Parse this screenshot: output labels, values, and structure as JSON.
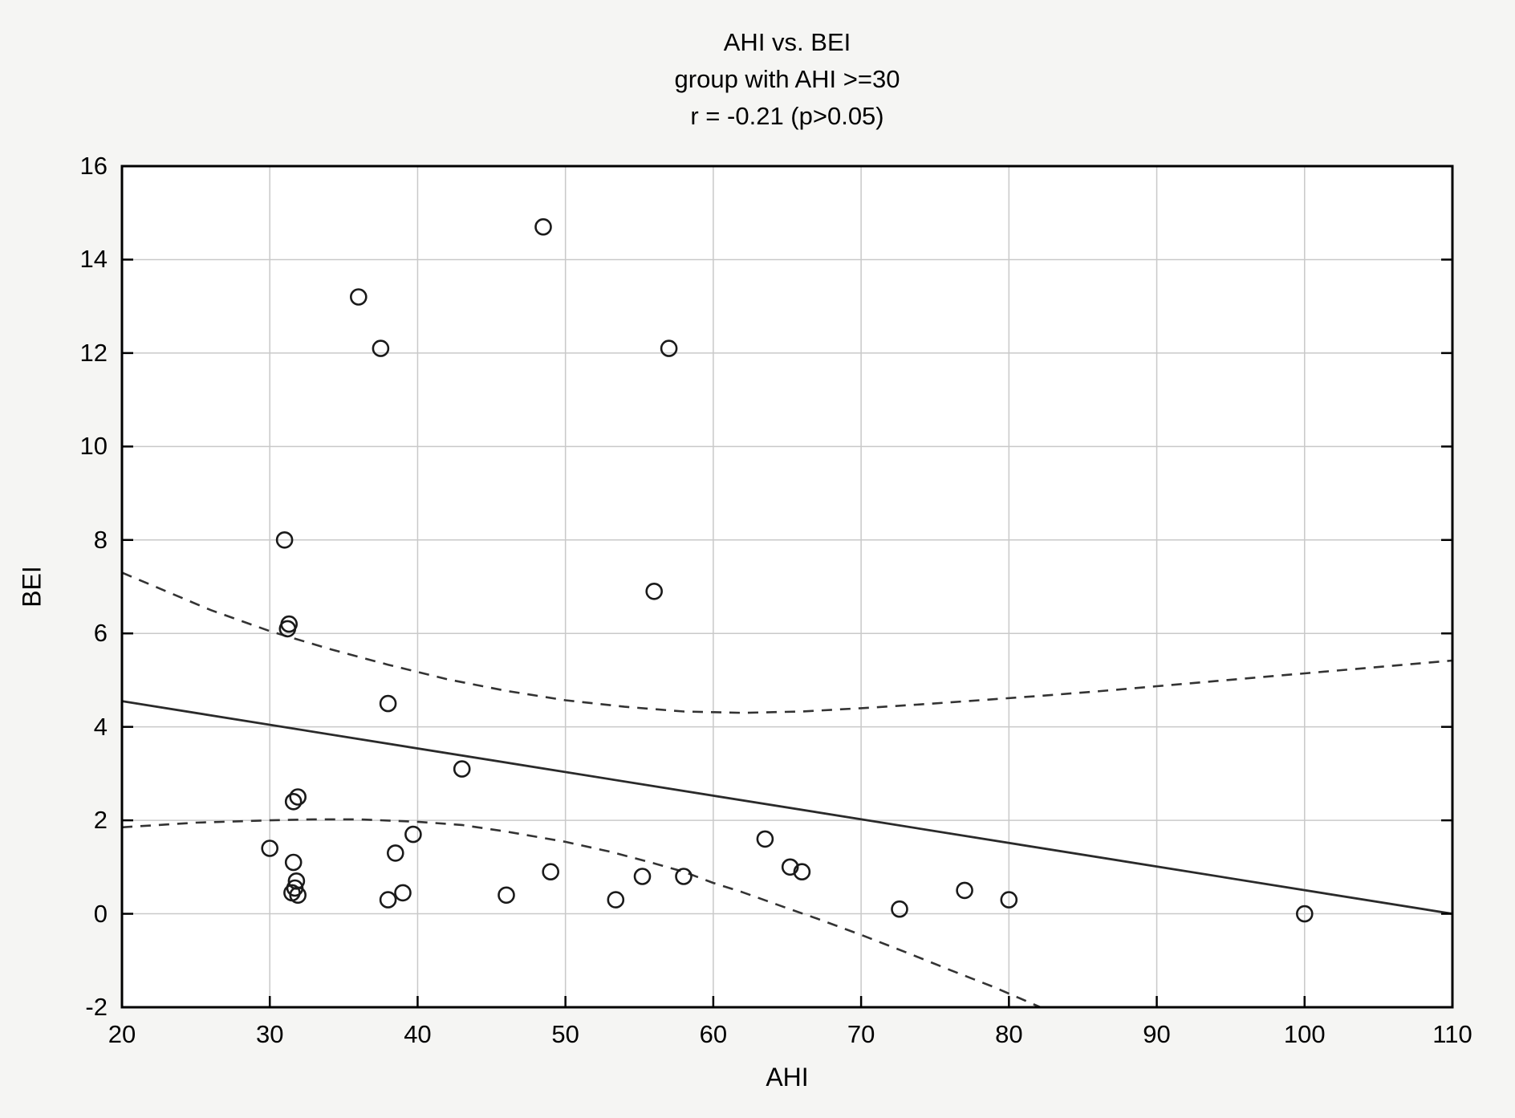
{
  "figure": {
    "background_color": "#f5f5f3",
    "plot_background_color": "#ffffff"
  },
  "chart_data": {
    "type": "scatter",
    "title": "AHI vs. BEI",
    "subtitle": "group with AHI >=30",
    "annotation": "r = -0.21 (p>0.05)",
    "xlabel": "AHI",
    "ylabel": "BEI",
    "xlim": [
      20,
      110
    ],
    "ylim": [
      -2,
      16
    ],
    "x_ticks": [
      20,
      30,
      40,
      50,
      60,
      70,
      80,
      90,
      100,
      110
    ],
    "y_ticks": [
      -2,
      0,
      2,
      4,
      6,
      8,
      10,
      12,
      14,
      16
    ],
    "grid": true,
    "legend": "none",
    "marker": "open-circle",
    "points": [
      [
        48.5,
        14.7
      ],
      [
        36,
        13.2
      ],
      [
        37.5,
        12.1
      ],
      [
        57,
        12.1
      ],
      [
        31,
        8.0
      ],
      [
        56,
        6.9
      ],
      [
        31.3,
        6.2
      ],
      [
        31.2,
        6.1
      ],
      [
        38,
        4.5
      ],
      [
        43,
        3.1
      ],
      [
        31.9,
        2.5
      ],
      [
        31.6,
        2.4
      ],
      [
        39.7,
        1.7
      ],
      [
        63.5,
        1.6
      ],
      [
        30,
        1.4
      ],
      [
        38.5,
        1.3
      ],
      [
        31.6,
        1.1
      ],
      [
        65.2,
        1.0
      ],
      [
        49,
        0.9
      ],
      [
        66,
        0.9
      ],
      [
        55.2,
        0.8
      ],
      [
        58,
        0.8
      ],
      [
        31.8,
        0.7
      ],
      [
        31.7,
        0.55
      ],
      [
        31.5,
        0.45
      ],
      [
        39,
        0.45
      ],
      [
        46,
        0.4
      ],
      [
        31.9,
        0.4
      ],
      [
        38,
        0.3
      ],
      [
        53.4,
        0.3
      ],
      [
        80,
        0.3
      ],
      [
        77,
        0.5
      ],
      [
        72.6,
        0.1
      ],
      [
        100,
        0.0
      ]
    ],
    "regression_line": {
      "x": [
        20,
        110
      ],
      "y": [
        4.55,
        0.0
      ]
    },
    "ci_upper": [
      [
        20,
        7.3
      ],
      [
        23,
        6.9
      ],
      [
        26,
        6.5
      ],
      [
        30,
        6.05
      ],
      [
        34,
        5.67
      ],
      [
        38,
        5.33
      ],
      [
        42,
        5.02
      ],
      [
        46,
        4.77
      ],
      [
        50,
        4.57
      ],
      [
        54,
        4.43
      ],
      [
        58,
        4.33
      ],
      [
        62,
        4.3
      ],
      [
        66,
        4.33
      ],
      [
        70,
        4.4
      ],
      [
        74,
        4.48
      ],
      [
        78,
        4.57
      ],
      [
        82,
        4.66
      ],
      [
        86,
        4.76
      ],
      [
        90,
        4.87
      ],
      [
        94,
        4.98
      ],
      [
        98,
        5.09
      ],
      [
        102,
        5.2
      ],
      [
        106,
        5.31
      ],
      [
        110,
        5.42
      ]
    ],
    "ci_lower": [
      [
        20,
        1.85
      ],
      [
        25,
        1.95
      ],
      [
        30,
        2.0
      ],
      [
        33,
        2.02
      ],
      [
        36,
        2.02
      ],
      [
        40,
        1.97
      ],
      [
        43,
        1.9
      ],
      [
        46,
        1.76
      ],
      [
        50,
        1.54
      ],
      [
        53,
        1.33
      ],
      [
        56,
        1.08
      ],
      [
        58,
        0.9
      ],
      [
        60,
        0.66
      ],
      [
        62,
        0.46
      ],
      [
        65,
        0.12
      ],
      [
        67,
        -0.1
      ],
      [
        70,
        -0.45
      ],
      [
        73,
        -0.82
      ],
      [
        76,
        -1.2
      ],
      [
        79,
        -1.57
      ],
      [
        82.5,
        -2.05
      ]
    ],
    "colors": {
      "points": "#1a1a1a",
      "regression_line": "#2a2a2a",
      "ci_line": "#333333",
      "grid": "#c9c9c9",
      "axis": "#000000"
    }
  }
}
